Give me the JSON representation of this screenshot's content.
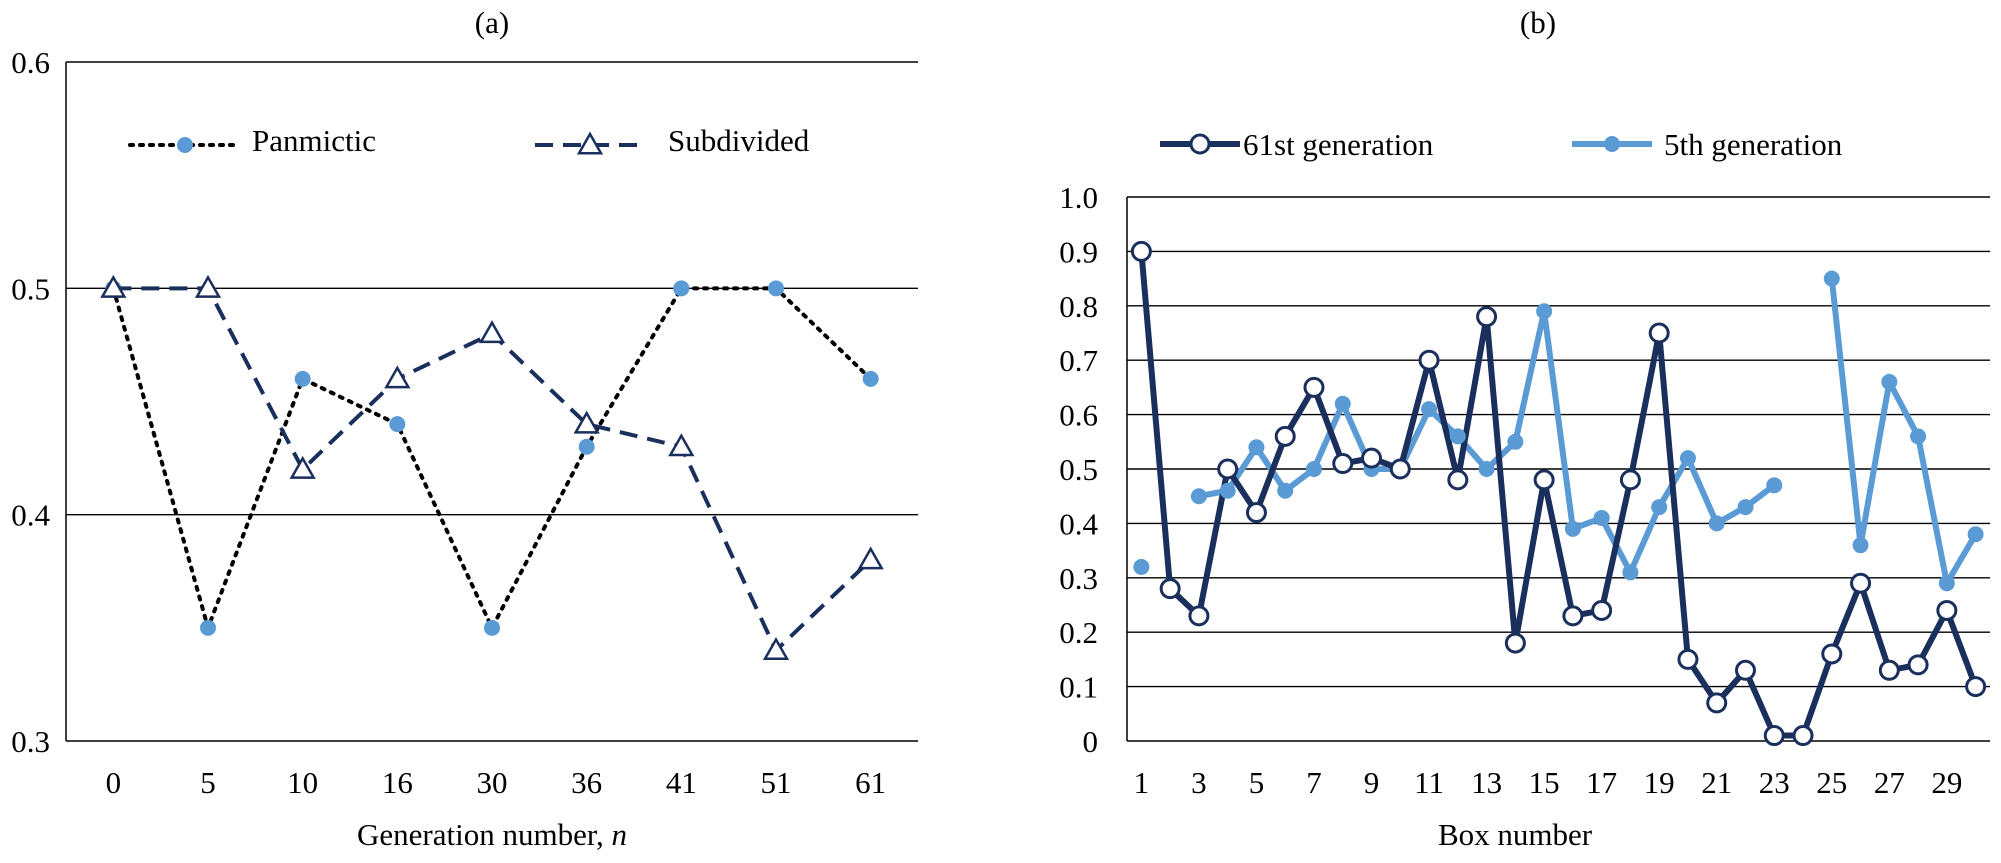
{
  "colors": {
    "dark_navy": "#1b2f5c",
    "light_blue": "#5b9bd5",
    "grid": "#000000",
    "black": "#000000"
  },
  "chart_data": [
    {
      "type": "line",
      "panel_label": "(a)",
      "xlabel": "Generation number, ",
      "xlabel_italic": "n",
      "categories": [
        "0",
        "5",
        "10",
        "16",
        "30",
        "36",
        "41",
        "51",
        "61"
      ],
      "ylim": [
        0.3,
        0.6
      ],
      "yticks": [
        "0.3",
        "0.4",
        "0.5",
        "0.6"
      ],
      "grid": "horizontal",
      "legend_position": "top",
      "series": [
        {
          "name": "Panmictic",
          "line_style": "dotted",
          "marker": "filled-circle",
          "color": "#5b9bd5",
          "line_color": "#000000",
          "values": [
            0.5,
            0.35,
            0.46,
            0.44,
            0.35,
            0.43,
            0.5,
            0.5,
            0.46
          ]
        },
        {
          "name": "Subdivided",
          "line_style": "dashed",
          "marker": "open-triangle",
          "color": "#1b2f5c",
          "values": [
            0.5,
            0.5,
            0.42,
            0.46,
            0.48,
            0.44,
            0.43,
            0.34,
            0.38
          ]
        }
      ]
    },
    {
      "type": "line",
      "panel_label": "(b)",
      "xlabel": "Box number",
      "x": [
        1,
        2,
        3,
        4,
        5,
        6,
        7,
        8,
        9,
        10,
        11,
        12,
        13,
        14,
        15,
        16,
        17,
        18,
        19,
        20,
        21,
        22,
        23,
        24,
        25,
        26,
        27,
        28,
        29,
        30
      ],
      "xtick_labels": [
        "1",
        "3",
        "5",
        "7",
        "9",
        "11",
        "13",
        "15",
        "17",
        "19",
        "21",
        "23",
        "25",
        "27",
        "29"
      ],
      "ylim": [
        0,
        1.0
      ],
      "yticks": [
        "0",
        "0.1",
        "0.2",
        "0.3",
        "0.4",
        "0.5",
        "0.6",
        "0.7",
        "0.8",
        "0.9",
        "1.0"
      ],
      "grid": "horizontal",
      "legend_position": "top",
      "series": [
        {
          "name": "61st generation",
          "line_style": "solid",
          "marker": "open-circle",
          "color": "#1b2f5c",
          "values": [
            0.9,
            0.28,
            0.23,
            0.5,
            0.42,
            0.56,
            0.65,
            0.51,
            0.52,
            0.5,
            0.7,
            0.48,
            0.78,
            0.18,
            0.48,
            0.23,
            0.24,
            0.48,
            0.75,
            0.15,
            0.07,
            0.13,
            0.01,
            0.01,
            0.16,
            0.29,
            0.13,
            0.14,
            0.24,
            0.1
          ]
        },
        {
          "name": "5th generation",
          "line_style": "solid",
          "marker": "filled-circle",
          "color": "#5b9bd5",
          "values": [
            0.32,
            null,
            0.45,
            0.46,
            0.54,
            0.46,
            0.5,
            0.62,
            0.5,
            0.5,
            0.61,
            0.56,
            0.5,
            0.55,
            0.79,
            0.39,
            0.41,
            0.31,
            0.43,
            0.52,
            0.4,
            0.43,
            0.47,
            null,
            0.85,
            0.36,
            0.66,
            0.56,
            0.29,
            0.38
          ]
        }
      ]
    }
  ]
}
